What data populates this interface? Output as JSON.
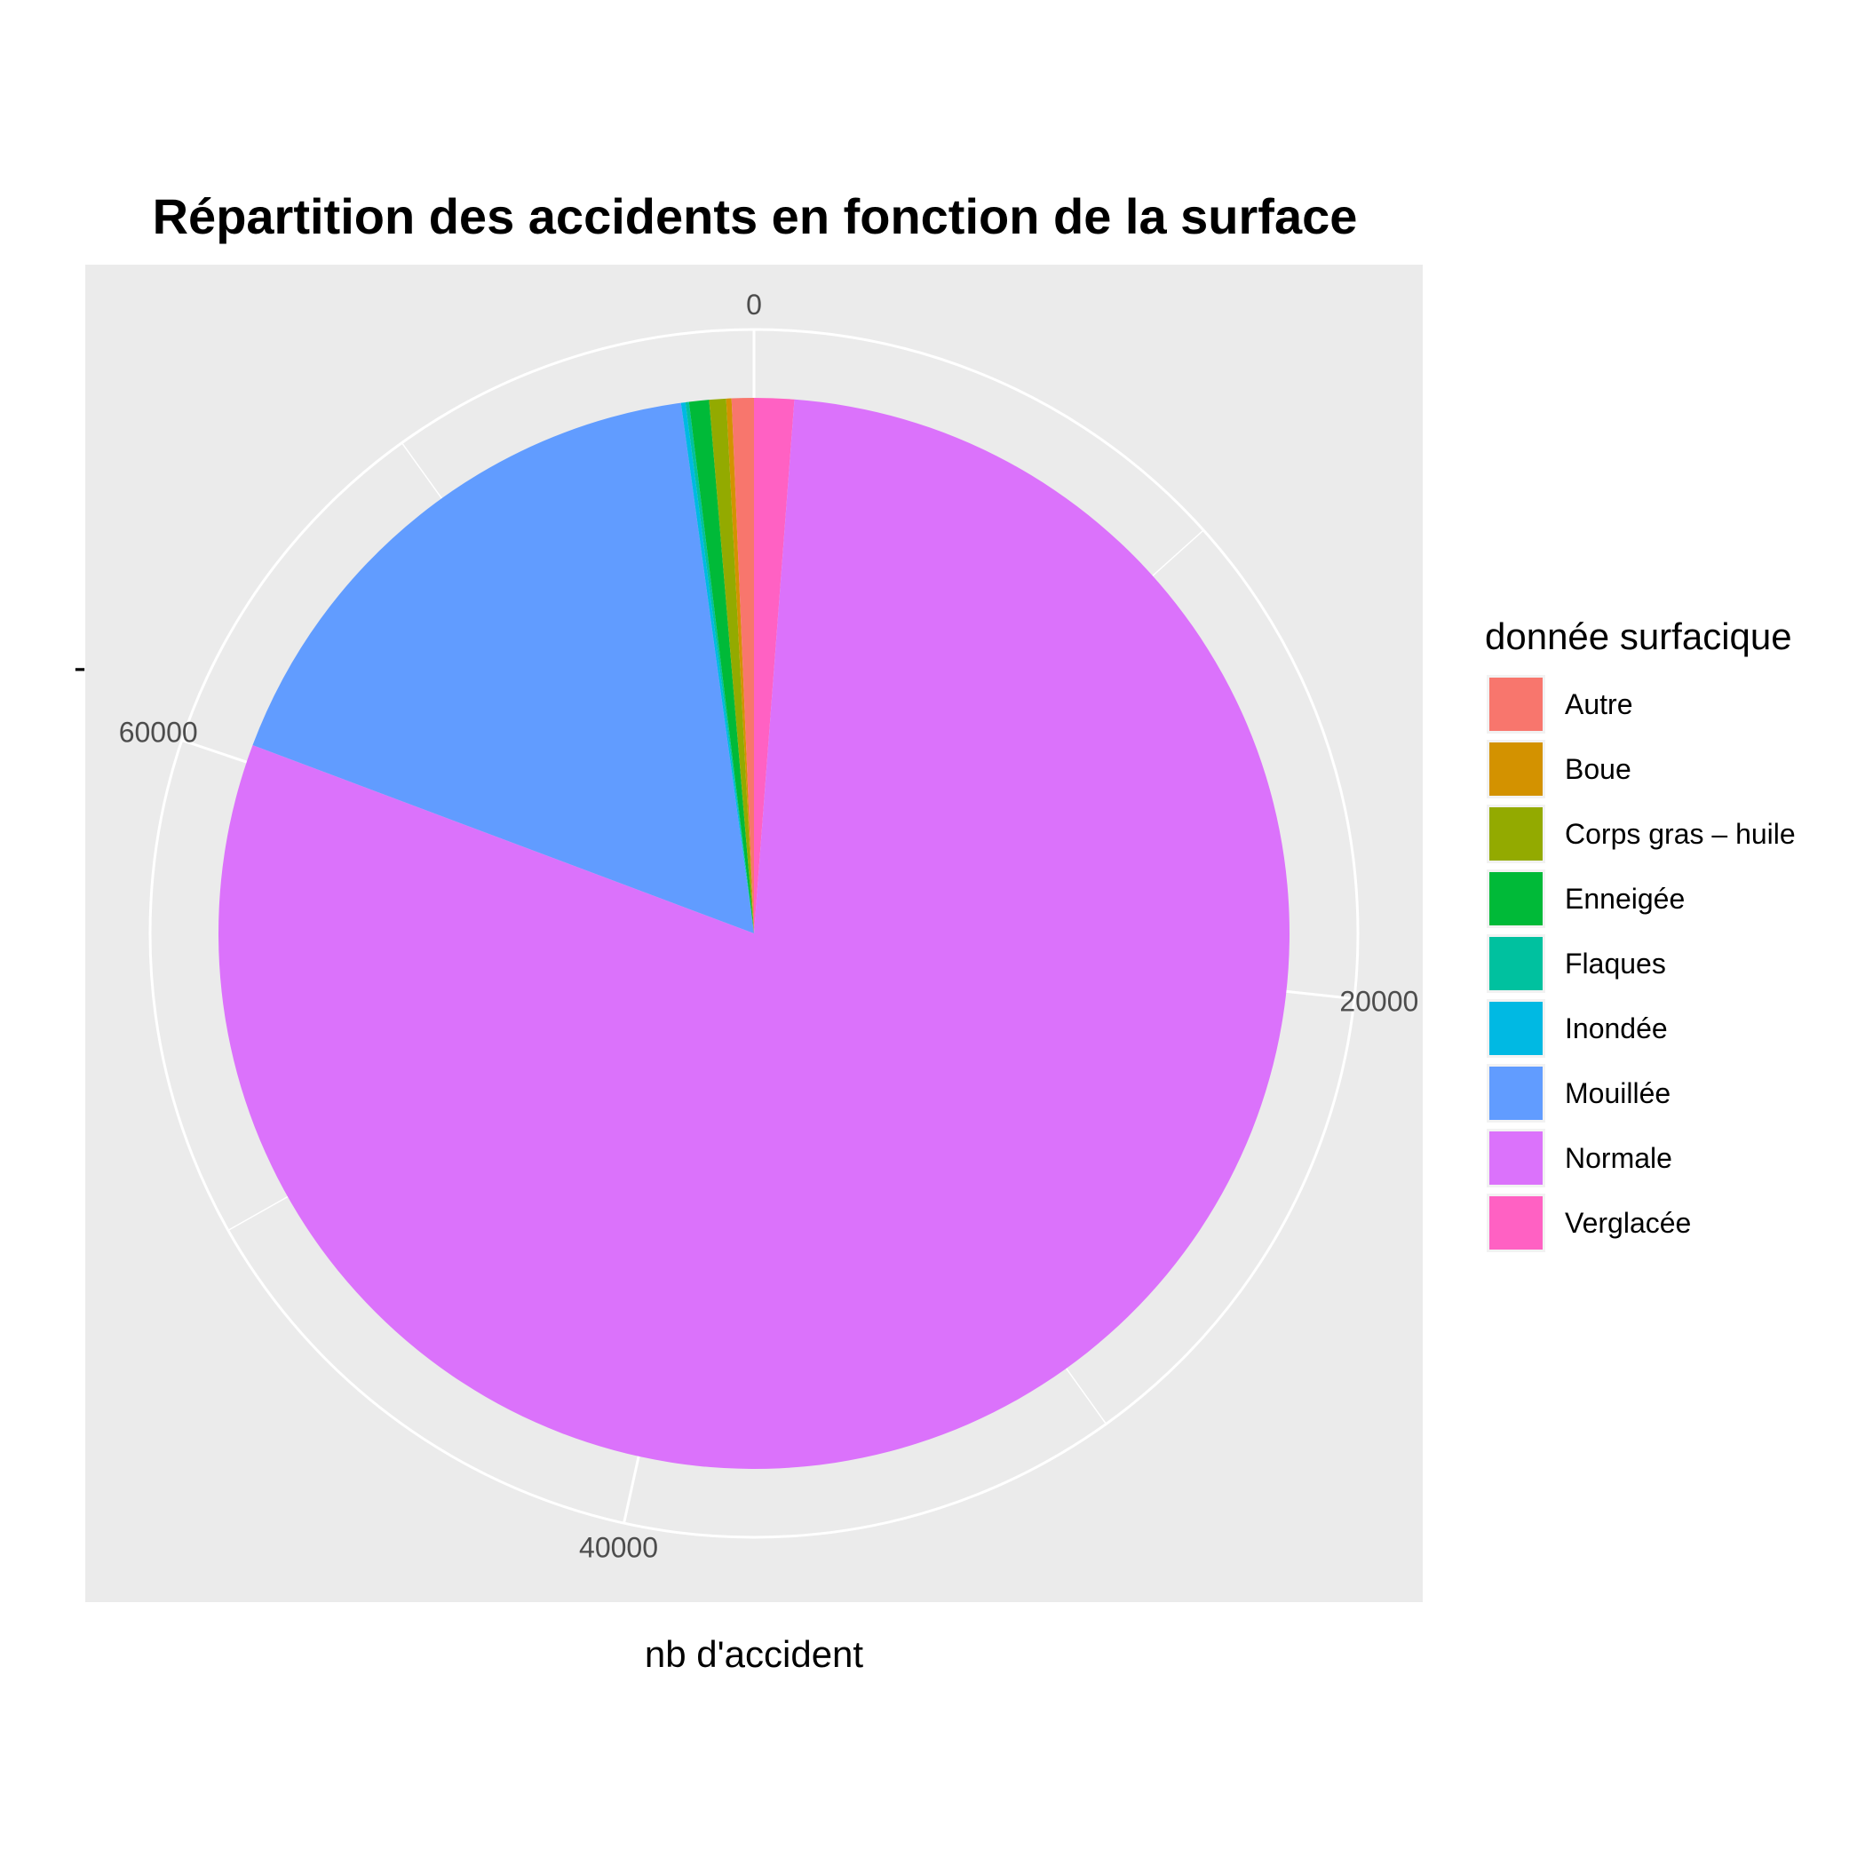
{
  "chart_data": {
    "type": "pie",
    "title": "Répartition des accidents en fonction de la surface",
    "xlabel": "nb d'accident",
    "ylabel": "-",
    "categories": [
      "Autre",
      "Boue",
      "Corps gras – huile",
      "Enneigée",
      "Flaques",
      "Inondée",
      "Mouillée",
      "Normale",
      "Verglacée"
    ],
    "values": [
      500,
      120,
      380,
      450,
      80,
      100,
      12800,
      59500,
      900
    ],
    "colors": [
      "#F8766D",
      "#D39200",
      "#93AA00",
      "#00BA38",
      "#00C19F",
      "#00B9E3",
      "#619CFF",
      "#DB72FB",
      "#FF61C3"
    ],
    "axis_ticks": [
      "0",
      "20000",
      "40000",
      "60000"
    ],
    "tick_values": [
      0,
      20000,
      40000,
      60000
    ],
    "direction": "clockwise",
    "start": "top",
    "stack_order": "reverse",
    "legend": {
      "title": "donnée surfacique",
      "position": "right"
    },
    "grid": true
  }
}
